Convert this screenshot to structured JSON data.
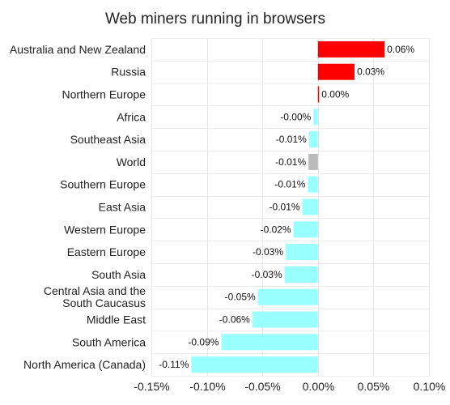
{
  "chart_data": {
    "type": "bar",
    "orientation": "horizontal",
    "title": "Web miners running in browsers",
    "xlabel": "",
    "ylabel": "",
    "xlim": [
      -0.15,
      0.1
    ],
    "xticks": [
      -0.15,
      -0.1,
      -0.05,
      0.0,
      0.05,
      0.1
    ],
    "xtick_labels": [
      "-0.15%",
      "-0.10%",
      "-0.05%",
      "0.00%",
      "0.05%",
      "0.10%"
    ],
    "grid": true,
    "legend": "none",
    "categories": [
      "Australia and New Zealand",
      "Russia",
      "Northern Europe",
      "Africa",
      "Southeast Asia",
      "World",
      "Southern Europe",
      "East Asia",
      "Western Europe",
      "Eastern Europe",
      "South Asia",
      "Central Asia and the South Caucasus",
      "Middle East",
      "South America",
      "North America (Canada)"
    ],
    "category_lines": [
      [
        "Australia and New Zealand"
      ],
      [
        "Russia"
      ],
      [
        "Northern Europe"
      ],
      [
        "Africa"
      ],
      [
        "Southeast Asia"
      ],
      [
        "World"
      ],
      [
        "Southern Europe"
      ],
      [
        "East Asia"
      ],
      [
        "Western Europe"
      ],
      [
        "Eastern Europe"
      ],
      [
        "South Asia"
      ],
      [
        "Central Asia and the",
        "South Caucasus"
      ],
      [
        "Middle East"
      ],
      [
        "South America"
      ],
      [
        "North America (Canada)"
      ]
    ],
    "values": [
      0.06,
      0.033,
      0.001,
      -0.004,
      -0.008,
      -0.0085,
      -0.009,
      -0.014,
      -0.022,
      -0.029,
      -0.03,
      -0.054,
      -0.059,
      -0.087,
      -0.114
    ],
    "data_labels": [
      "0.06%",
      "0.03%",
      "0.00%",
      "-0.00%",
      "-0.01%",
      "-0.01%",
      "-0.01%",
      "-0.01%",
      "-0.02%",
      "-0.03%",
      "-0.03%",
      "-0.05%",
      "-0.06%",
      "-0.09%",
      "-0.11%"
    ],
    "bar_colors": [
      "#ff0000",
      "#ff0000",
      "#ff0000",
      "#99ffff",
      "#99ffff",
      "#bbbbbb",
      "#99ffff",
      "#99ffff",
      "#99ffff",
      "#99ffff",
      "#99ffff",
      "#99ffff",
      "#99ffff",
      "#99ffff",
      "#99ffff"
    ]
  }
}
